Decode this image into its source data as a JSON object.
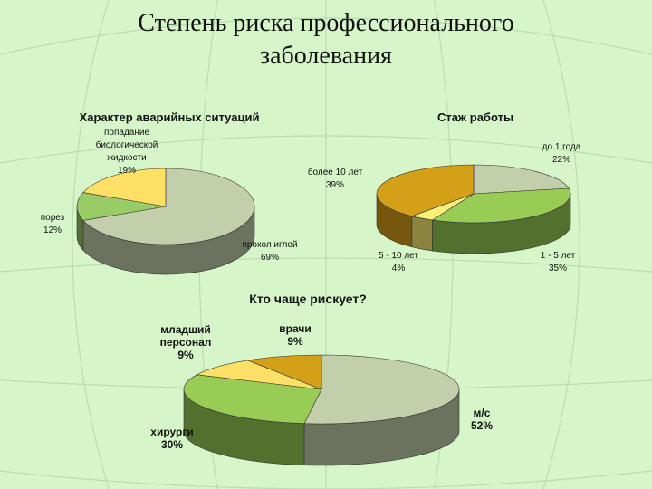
{
  "title": "Степень риска профессионального заболевания",
  "chart_data": [
    {
      "type": "pie",
      "title": "Характер аварийных ситуаций",
      "categories": [
        "прокол иглой",
        "порез",
        "попадание биологической жидкости"
      ],
      "values": [
        69,
        12,
        19
      ],
      "value_labels": [
        "69%",
        "12%",
        "19%"
      ],
      "colors": [
        "#c2cfaa",
        "#99cc66",
        "#ffe066"
      ]
    },
    {
      "type": "pie",
      "title": "Стаж работы",
      "categories": [
        "до 1 года",
        "1 - 5 лет",
        "5 - 10 лет",
        "более 10 лет"
      ],
      "values": [
        22,
        35,
        4,
        39
      ],
      "value_labels": [
        "22%",
        "35%",
        "4%",
        "39%"
      ],
      "colors": [
        "#c2cfaa",
        "#99cc55",
        "#ffee77",
        "#d4a017"
      ]
    },
    {
      "type": "pie",
      "title": "Кто чаще рискует?",
      "categories": [
        "м/с",
        "хирурги",
        "младший персонал",
        "врачи"
      ],
      "values": [
        52,
        30,
        9,
        9
      ],
      "value_labels": [
        "52%",
        "30%",
        "9%",
        "9%"
      ],
      "colors": [
        "#c2cfaa",
        "#99cc55",
        "#ffe066",
        "#d4a017"
      ]
    }
  ]
}
